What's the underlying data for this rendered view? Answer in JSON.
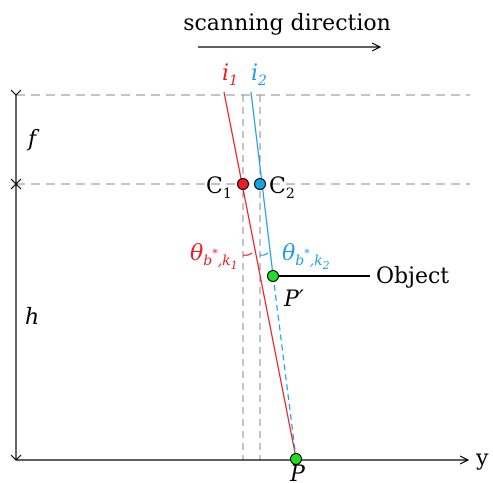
{
  "header": {
    "scan_label": "scanning direction"
  },
  "labels": {
    "i1_base": "i",
    "i1_sub": "1",
    "i2_base": "i",
    "i2_sub": "2",
    "c1_base": "C",
    "c1_sub": "1",
    "c2_base": "C",
    "c2_sub": "2",
    "theta1_base": "θ",
    "theta1_sub": "b",
    "theta1_star": "*",
    "theta1_tail": ",k",
    "theta1_idx": "1",
    "theta2_base": "θ",
    "theta2_sub": "b",
    "theta2_star": "*",
    "theta2_tail": ",k",
    "theta2_idx": "2",
    "f": "f",
    "h": "h",
    "object": "Object",
    "p_prime": "P′",
    "p": "P",
    "y_axis": "y"
  },
  "colors": {
    "red": "#ee1c24",
    "cyan": "#1ba1e2",
    "green": "#22dd22",
    "dash": "#888888",
    "ink": "#000000"
  }
}
